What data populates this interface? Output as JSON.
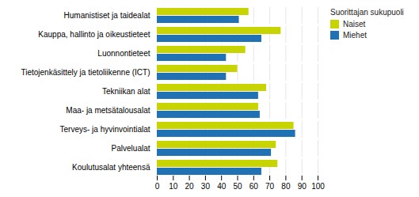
{
  "chart_data": {
    "type": "bar",
    "orientation": "horizontal",
    "categories": [
      "Humanistiset ja taidealat",
      "Kauppa, hallinto ja oikeustieteet",
      "Luonnontieteet",
      "Tietojenkäsittely ja tietoliikenne (ICT)",
      "Tekniikan alat",
      "Maa- ja metsätalousalat",
      "Terveys- ja hyvinvointialat",
      "Palvelualat",
      "Koulutusalat yhteensä"
    ],
    "series": [
      {
        "name": "Naiset",
        "color": "#c8d400",
        "values": [
          57,
          77,
          55,
          50,
          68,
          63,
          85,
          74,
          75
        ]
      },
      {
        "name": "Miehet",
        "color": "#2171b5",
        "values": [
          51,
          65,
          43,
          43,
          63,
          64,
          86,
          71,
          65
        ]
      }
    ],
    "legend_title": "Suorittajan sukupuoli",
    "legend": "right",
    "xlim": [
      0,
      100
    ],
    "xticks": [
      0,
      10,
      20,
      30,
      40,
      50,
      60,
      70,
      80,
      90,
      100
    ],
    "grid": true
  }
}
